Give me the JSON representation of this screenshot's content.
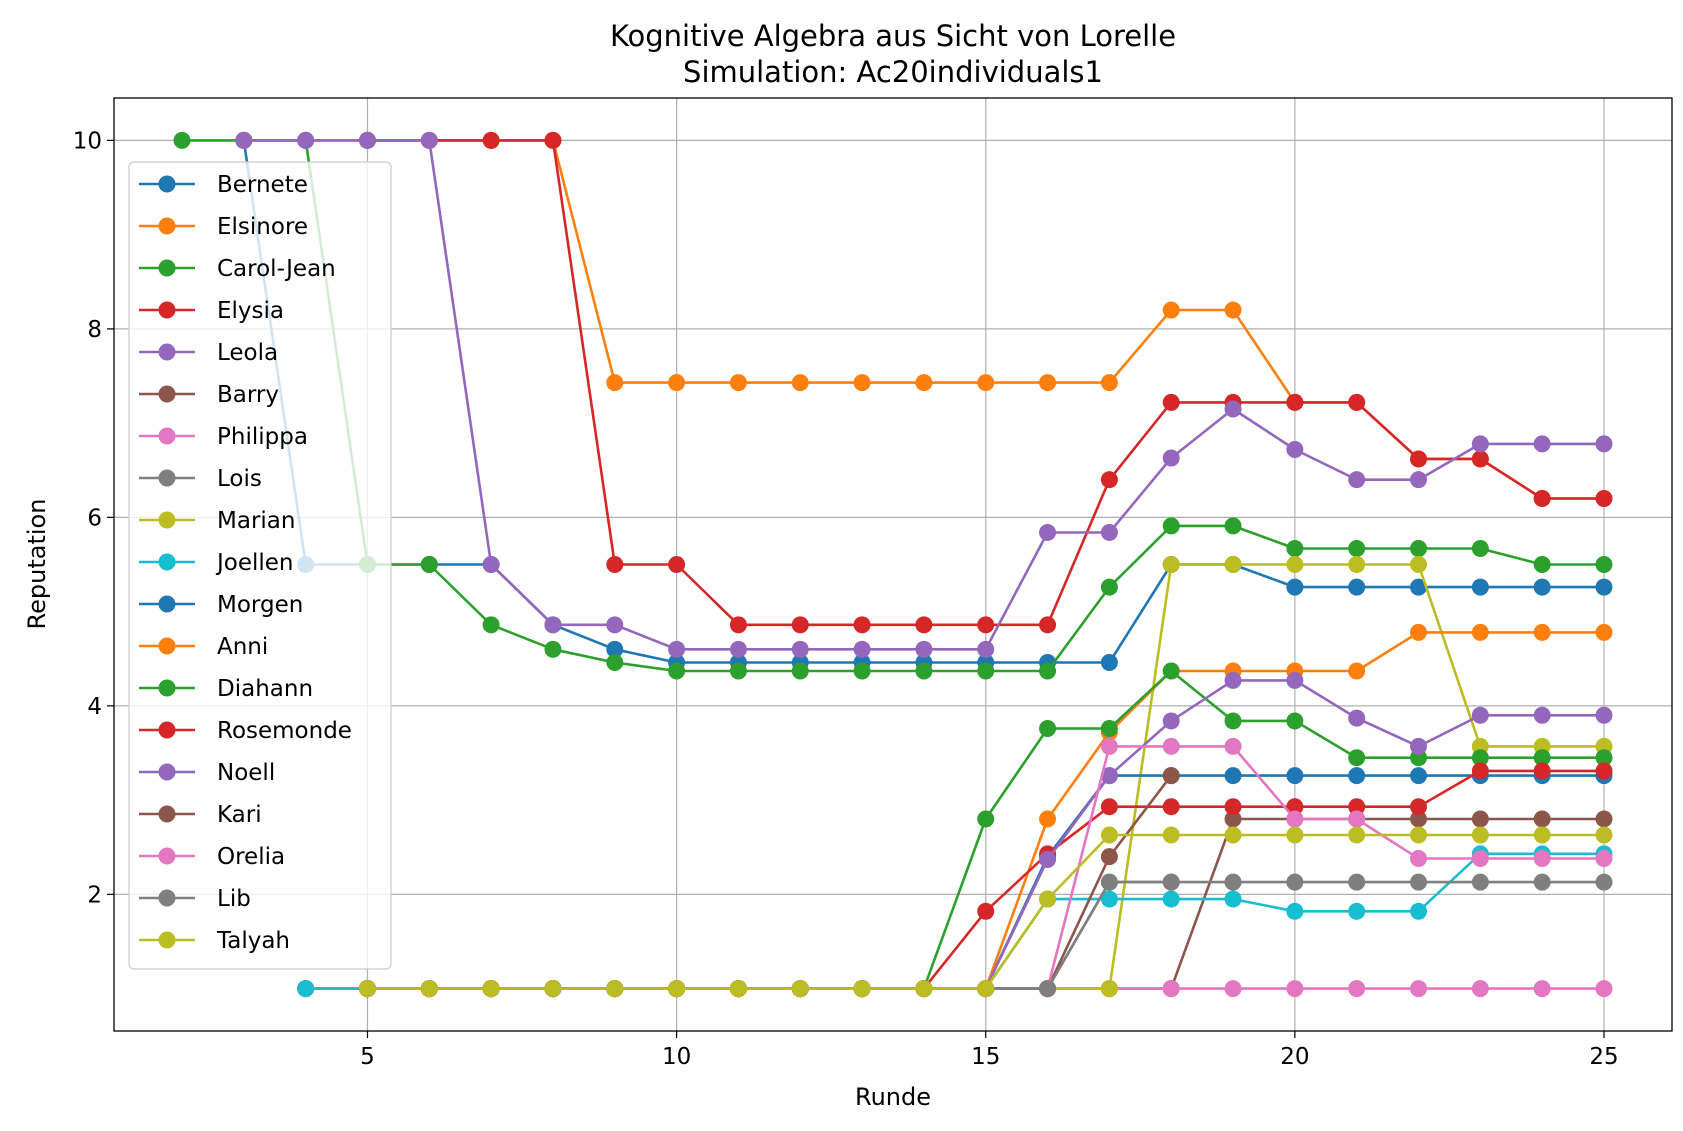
{
  "chart_data": {
    "type": "line",
    "title": "Kognitive Algebra aus Sicht von Lorelle",
    "subtitle": "Simulation: Ac20individuals1",
    "xlabel": "Runde",
    "ylabel": "Reputation",
    "xlim": [
      0.9,
      26.1
    ],
    "ylim": [
      0.55,
      10.45
    ],
    "xticks": [
      5,
      10,
      15,
      20,
      25
    ],
    "yticks": [
      2,
      4,
      6,
      8,
      10
    ],
    "grid": true,
    "legend_position": "left",
    "series": [
      {
        "name": "Bernete",
        "color": "#1f77b4",
        "x": [
          3,
          4,
          5,
          6,
          7,
          8,
          9,
          10,
          11,
          12,
          13,
          14,
          15,
          16,
          17,
          18,
          19,
          20,
          21,
          22,
          23,
          24,
          25
        ],
        "values": [
          10,
          5.5,
          5.5,
          5.5,
          5.5,
          4.86,
          4.6,
          4.46,
          4.46,
          4.46,
          4.46,
          4.46,
          4.46,
          4.46,
          4.46,
          5.5,
          5.5,
          5.26,
          5.26,
          5.26,
          5.26,
          5.26,
          5.26
        ]
      },
      {
        "name": "Elsinore",
        "color": "#ff7f0e",
        "x": [
          3,
          4,
          5,
          6,
          7,
          8,
          9,
          10,
          11,
          12,
          13,
          14,
          15,
          16,
          17,
          18,
          19,
          20,
          21,
          22,
          23,
          24,
          25
        ],
        "values": [
          10,
          10,
          10,
          10,
          10,
          10,
          7.43,
          7.43,
          7.43,
          7.43,
          7.43,
          7.43,
          7.43,
          7.43,
          7.43,
          8.2,
          8.2,
          7.22,
          7.22,
          6.62,
          6.62,
          6.2,
          6.2
        ]
      },
      {
        "name": "Carol-Jean",
        "color": "#2ca02c",
        "x": [
          2,
          3,
          4,
          5,
          6,
          7,
          8,
          9,
          10,
          11,
          12,
          13,
          14,
          15,
          16,
          17,
          18,
          19,
          20,
          21,
          22,
          23,
          24,
          25
        ],
        "values": [
          10,
          10,
          10,
          5.5,
          5.5,
          4.86,
          4.6,
          4.46,
          4.37,
          4.37,
          4.37,
          4.37,
          4.37,
          4.37,
          4.37,
          5.26,
          5.91,
          5.91,
          5.67,
          5.67,
          5.67,
          5.67,
          5.5,
          5.5
        ]
      },
      {
        "name": "Elysia",
        "color": "#d62728",
        "x": [
          5,
          6,
          7,
          8,
          9,
          10,
          11,
          12,
          13,
          14,
          15,
          16,
          17,
          18,
          19,
          20,
          21,
          22,
          23,
          24,
          25
        ],
        "values": [
          10,
          10,
          10,
          10,
          5.5,
          5.5,
          4.86,
          4.86,
          4.86,
          4.86,
          4.86,
          4.86,
          6.4,
          7.22,
          7.22,
          7.22,
          7.22,
          6.62,
          6.62,
          6.2,
          6.2
        ]
      },
      {
        "name": "Leola",
        "color": "#9467bd",
        "x": [
          3,
          4,
          5,
          6,
          7,
          8,
          9,
          10,
          11,
          12,
          13,
          14,
          15,
          16,
          17,
          18,
          19,
          20,
          21,
          22,
          23,
          24,
          25
        ],
        "values": [
          10,
          10,
          10,
          10,
          5.5,
          4.86,
          4.86,
          4.6,
          4.6,
          4.6,
          4.6,
          4.6,
          4.6,
          5.84,
          5.84,
          6.63,
          7.15,
          6.72,
          6.4,
          6.4,
          6.78,
          6.78,
          6.78
        ]
      },
      {
        "name": "Barry",
        "color": "#8c564b",
        "x": [
          4,
          5,
          6,
          7,
          8,
          9,
          10,
          11,
          12,
          13,
          14,
          15,
          16,
          17,
          18,
          19,
          20,
          21,
          22,
          23,
          24,
          25
        ],
        "values": [
          1,
          1,
          1,
          1,
          1,
          1,
          1,
          1,
          1,
          1,
          1,
          1,
          1,
          1,
          1,
          2.8,
          2.8,
          2.8,
          2.8,
          2.8,
          2.8,
          2.8
        ]
      },
      {
        "name": "Philippa",
        "color": "#e377c2",
        "x": [
          4,
          5,
          6,
          7,
          8,
          9,
          10,
          11,
          12,
          13,
          14,
          15,
          16,
          17,
          18,
          19,
          20,
          21,
          22,
          23,
          24,
          25
        ],
        "values": [
          1,
          1,
          1,
          1,
          1,
          1,
          1,
          1,
          1,
          1,
          1,
          1,
          1,
          1,
          1,
          1,
          1,
          1,
          1,
          1,
          1,
          1
        ]
      },
      {
        "name": "Lois",
        "color": "#7f7f7f",
        "x": [
          4,
          5,
          6,
          7,
          8,
          9,
          10,
          11,
          12,
          13,
          14,
          15,
          16,
          17,
          18
        ],
        "values": [
          1,
          1,
          1,
          1,
          1,
          1,
          1,
          1,
          1,
          1,
          1,
          1,
          1,
          2.13,
          2.13
        ]
      },
      {
        "name": "Marian",
        "color": "#bcbd22",
        "x": [
          4,
          5,
          6,
          7,
          8,
          9,
          10,
          11,
          12,
          13,
          14,
          15,
          16,
          17,
          18,
          19,
          20,
          21,
          22,
          23,
          24,
          25
        ],
        "values": [
          1,
          1,
          1,
          1,
          1,
          1,
          1,
          1,
          1,
          1,
          1,
          1,
          1,
          1,
          5.5,
          5.5,
          5.5,
          5.5,
          5.5,
          3.57,
          3.57,
          3.57
        ]
      },
      {
        "name": "Joellen",
        "color": "#17becf",
        "x": [
          4,
          5,
          6,
          7,
          8,
          9,
          10,
          11,
          12,
          13,
          14,
          15,
          16,
          17,
          18,
          19,
          20,
          21,
          22,
          23,
          24,
          25
        ],
        "values": [
          1,
          1,
          1,
          1,
          1,
          1,
          1,
          1,
          1,
          1,
          1,
          1,
          1.95,
          1.95,
          1.95,
          1.95,
          1.82,
          1.82,
          1.82,
          2.43,
          2.43,
          2.43
        ]
      },
      {
        "name": "Morgen",
        "color": "#1f77b4",
        "x": [
          5,
          6,
          7,
          8,
          9,
          10,
          11,
          12,
          13,
          14,
          15,
          16,
          17,
          18,
          19,
          20,
          21,
          22,
          23,
          24,
          25
        ],
        "values": [
          1,
          1,
          1,
          1,
          1,
          1,
          1,
          1,
          1,
          1,
          1,
          2.4,
          3.26,
          3.26,
          3.26,
          3.26,
          3.26,
          3.26,
          3.26,
          3.26,
          3.26
        ]
      },
      {
        "name": "Anni",
        "color": "#ff7f0e",
        "x": [
          5,
          6,
          7,
          8,
          9,
          10,
          11,
          12,
          13,
          14,
          15,
          16,
          17,
          18,
          19,
          20,
          21,
          22,
          23,
          24,
          25
        ],
        "values": [
          1,
          1,
          1,
          1,
          1,
          1,
          1,
          1,
          1,
          1,
          1,
          2.8,
          3.72,
          4.37,
          4.37,
          4.37,
          4.37,
          4.78,
          4.78,
          4.78,
          4.78
        ]
      },
      {
        "name": "Diahann",
        "color": "#2ca02c",
        "x": [
          5,
          6,
          7,
          8,
          9,
          10,
          11,
          12,
          13,
          14,
          15,
          16,
          17,
          18,
          19,
          20,
          21,
          22,
          23,
          24,
          25
        ],
        "values": [
          1,
          1,
          1,
          1,
          1,
          1,
          1,
          1,
          1,
          1,
          2.8,
          3.76,
          3.76,
          4.37,
          3.84,
          3.84,
          3.45,
          3.45,
          3.45,
          3.45,
          3.45
        ]
      },
      {
        "name": "Rosemonde",
        "color": "#d62728",
        "x": [
          5,
          6,
          7,
          8,
          9,
          10,
          11,
          12,
          13,
          14,
          15,
          16,
          17,
          18,
          19,
          20,
          21,
          22,
          23,
          24,
          25
        ],
        "values": [
          1,
          1,
          1,
          1,
          1,
          1,
          1,
          1,
          1,
          1,
          1.82,
          2.43,
          2.93,
          2.93,
          2.93,
          2.93,
          2.93,
          2.93,
          3.31,
          3.31,
          3.31
        ]
      },
      {
        "name": "Noell",
        "color": "#9467bd",
        "x": [
          5,
          6,
          7,
          8,
          9,
          10,
          11,
          12,
          13,
          14,
          15,
          16,
          17,
          18,
          19,
          20,
          21,
          22,
          23,
          24,
          25
        ],
        "values": [
          1,
          1,
          1,
          1,
          1,
          1,
          1,
          1,
          1,
          1,
          1,
          2.37,
          3.26,
          3.84,
          4.27,
          4.27,
          3.87,
          3.57,
          3.9,
          3.9,
          3.9
        ]
      },
      {
        "name": "Kari",
        "color": "#8c564b",
        "x": [
          5,
          6,
          7,
          8,
          9,
          10,
          11,
          12,
          13,
          14,
          15,
          16,
          17,
          18
        ],
        "values": [
          1,
          1,
          1,
          1,
          1,
          1,
          1,
          1,
          1,
          1,
          1,
          1,
          2.4,
          3.26
        ]
      },
      {
        "name": "Orelia",
        "color": "#e377c2",
        "x": [
          5,
          6,
          7,
          8,
          9,
          10,
          11,
          12,
          13,
          14,
          15,
          16,
          17,
          18,
          19,
          20,
          21,
          22,
          23,
          24,
          25
        ],
        "values": [
          1,
          1,
          1,
          1,
          1,
          1,
          1,
          1,
          1,
          1,
          1,
          1,
          3.57,
          3.57,
          3.57,
          2.8,
          2.8,
          2.38,
          2.38,
          2.38,
          2.38
        ]
      },
      {
        "name": "Lib",
        "color": "#7f7f7f",
        "x": [
          5,
          6,
          7,
          8,
          9,
          10,
          11,
          12,
          13,
          14,
          15,
          16,
          17,
          18,
          19,
          20,
          21,
          22,
          23,
          24,
          25
        ],
        "values": [
          1,
          1,
          1,
          1,
          1,
          1,
          1,
          1,
          1,
          1,
          1,
          1,
          2.13,
          2.13,
          2.13,
          2.13,
          2.13,
          2.13,
          2.13,
          2.13,
          2.13
        ]
      },
      {
        "name": "Talyah",
        "color": "#bcbd22",
        "x": [
          5,
          6,
          7,
          8,
          9,
          10,
          11,
          12,
          13,
          14,
          15,
          16,
          17,
          18,
          19,
          20,
          21,
          22,
          23,
          24,
          25
        ],
        "values": [
          1,
          1,
          1,
          1,
          1,
          1,
          1,
          1,
          1,
          1,
          1,
          1.95,
          2.63,
          2.63,
          2.63,
          2.63,
          2.63,
          2.63,
          2.63,
          2.63,
          2.63
        ]
      }
    ]
  }
}
